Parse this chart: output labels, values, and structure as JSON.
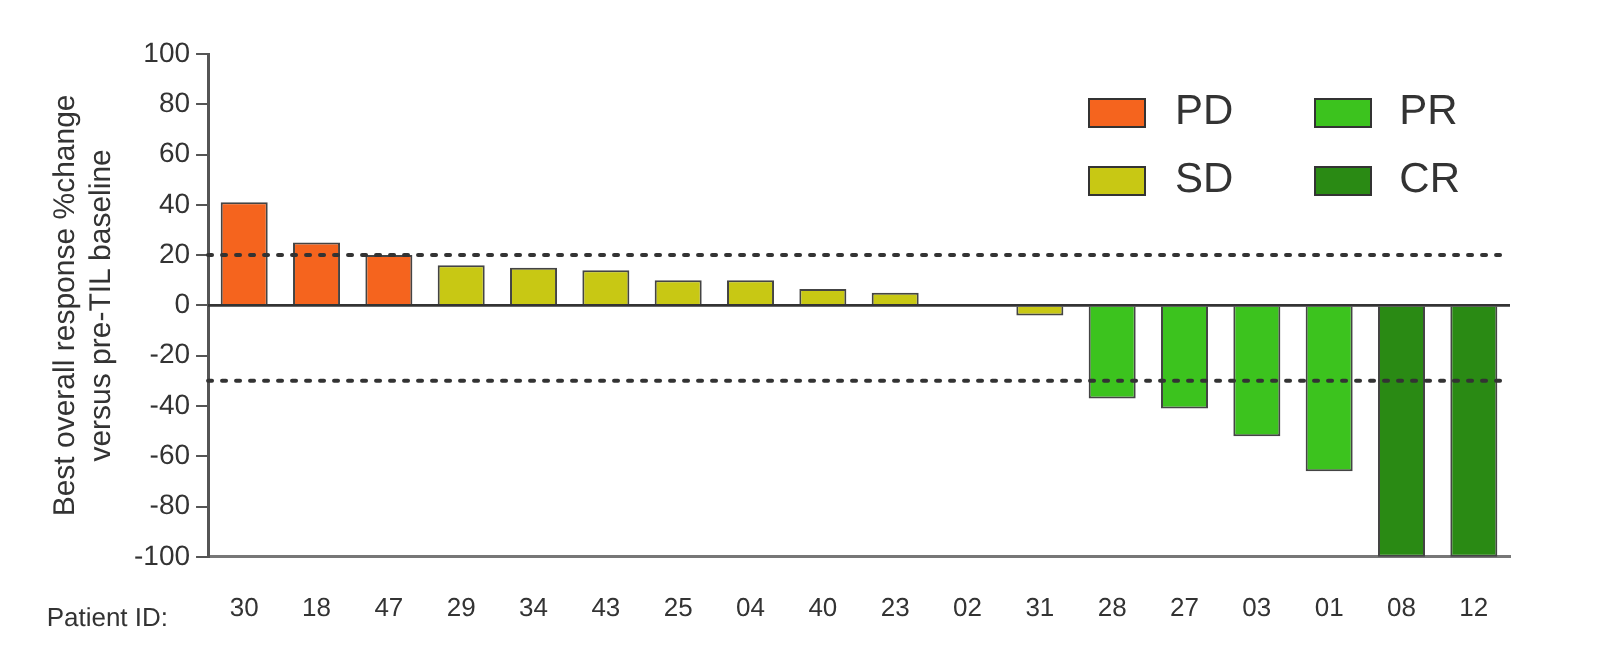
{
  "chart_data": {
    "type": "bar",
    "ylabel": "Best overall response %change\nversus pre-TIL baseline",
    "xlabel": "Patient ID:",
    "categories": [
      "30",
      "18",
      "47",
      "29",
      "34",
      "43",
      "25",
      "04",
      "40",
      "23",
      "02",
      "31",
      "28",
      "27",
      "03",
      "01",
      "08",
      "12"
    ],
    "series": [
      {
        "name": "PD",
        "color": "#f5641e",
        "values": [
          41,
          25,
          20,
          null,
          null,
          null,
          null,
          null,
          null,
          null,
          null,
          null,
          null,
          null,
          null,
          null,
          null,
          null
        ]
      },
      {
        "name": "SD",
        "color": "#c8c814",
        "values": [
          null,
          null,
          null,
          16,
          15,
          14,
          10,
          10,
          6.5,
          5,
          0,
          -4,
          null,
          null,
          null,
          null,
          null,
          null
        ]
      },
      {
        "name": "PR",
        "color": "#3cc31e",
        "values": [
          null,
          null,
          null,
          null,
          null,
          null,
          null,
          null,
          null,
          null,
          null,
          null,
          -37,
          -41,
          -52,
          -66,
          null,
          null
        ]
      },
      {
        "name": "CR",
        "color": "#2a8a14",
        "values": [
          null,
          null,
          null,
          null,
          null,
          null,
          null,
          null,
          null,
          null,
          null,
          null,
          null,
          null,
          null,
          null,
          -100,
          -100
        ]
      }
    ],
    "ylim": [
      -100,
      100
    ],
    "yticks": [
      -100,
      -80,
      -60,
      -40,
      -20,
      0,
      20,
      40,
      60,
      80,
      100
    ],
    "ref_lines": [
      {
        "axis": "y",
        "value": 20,
        "line_style": "dotted"
      },
      {
        "axis": "y",
        "value": -30,
        "line_style": "dotted"
      },
      {
        "axis": "y",
        "value": 0,
        "line_style": "solid"
      }
    ],
    "grid": false,
    "legend": "top right"
  }
}
